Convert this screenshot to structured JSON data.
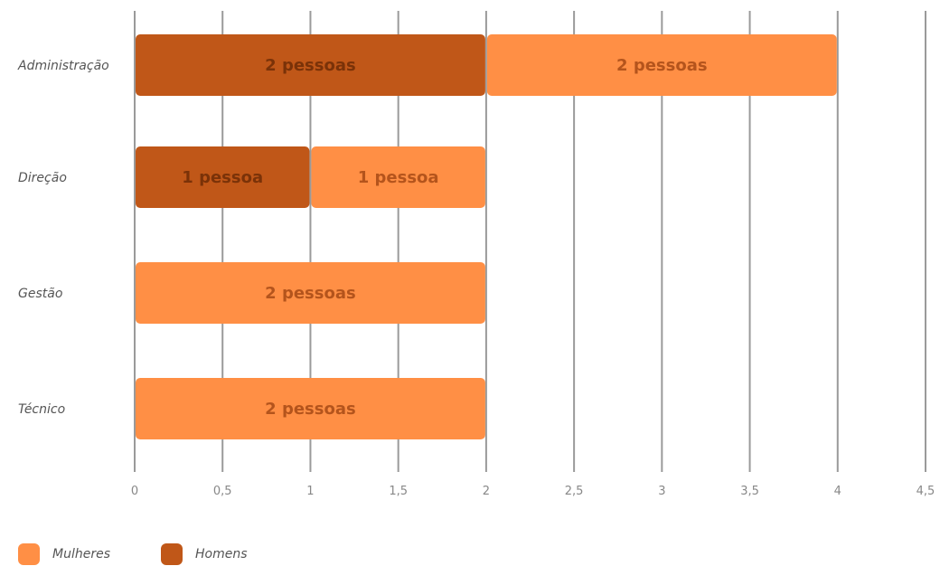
{
  "chart_data": {
    "type": "bar",
    "orientation": "horizontal",
    "stacked": true,
    "categories": [
      "Administração",
      "Direção",
      "Gestão",
      "Técnico"
    ],
    "series": [
      {
        "name": "Homens",
        "color": "#C05718",
        "text_color": "#7A3208",
        "values": [
          2,
          1,
          0,
          0
        ],
        "labels": [
          "2 pessoas",
          "1 pessoa",
          "",
          ""
        ]
      },
      {
        "name": "Mulheres",
        "color": "#FF8F45",
        "text_color": "#B4541C",
        "values": [
          2,
          1,
          2,
          2
        ],
        "labels": [
          "2 pessoas",
          "1 pessoa",
          "2 pessoas",
          "2 pessoas"
        ]
      }
    ],
    "xlim": [
      0,
      4.5
    ],
    "x_ticks": [
      "0",
      "0,5",
      "1",
      "1,5",
      "2",
      "2,5",
      "3",
      "3,5",
      "4",
      "4,5"
    ],
    "x_tick_values": [
      0,
      0.5,
      1,
      1.5,
      2,
      2.5,
      3,
      3.5,
      4,
      4.5
    ],
    "grid": "vertical",
    "legend_position": "bottom-left"
  },
  "legend": {
    "items": [
      {
        "label": "Mulheres",
        "color": "#FF8F45"
      },
      {
        "label": "Homens",
        "color": "#C05718"
      }
    ]
  }
}
